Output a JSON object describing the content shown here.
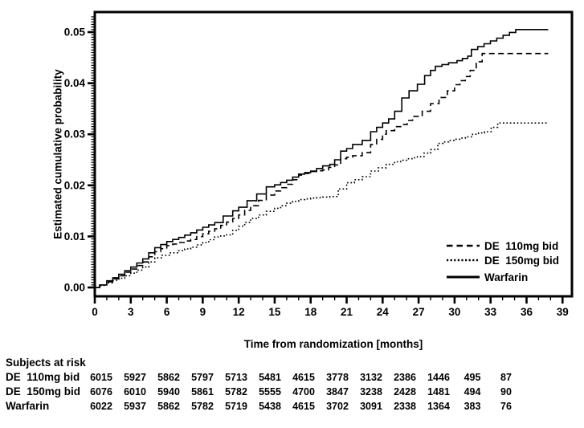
{
  "chart_data": {
    "type": "line",
    "subtype": "kaplan-meier-step",
    "title": "",
    "xlabel": "Time from randomization [months]",
    "ylabel": "Estimated cumulative probability",
    "xlim": [
      0,
      39.8
    ],
    "ylim": [
      0,
      0.0538
    ],
    "x_ticks": [
      0,
      3,
      6,
      9,
      12,
      15,
      18,
      21,
      24,
      27,
      30,
      33,
      36,
      39
    ],
    "x_minor_step": 1,
    "y_tick_values": [
      0,
      0.01,
      0.02,
      0.03,
      0.04,
      0.05
    ],
    "y_tick_labels": [
      "0.00",
      "0.01",
      "0.02",
      "0.03",
      "0.04",
      "0.05"
    ],
    "y_minor_step": 0.0005,
    "grid": false,
    "legend_position": "inside-lower-right",
    "line_color": "#000000",
    "series": [
      {
        "name": "DE  110mg bid",
        "style": "dashed",
        "points": [
          [
            0,
            0
          ],
          [
            0.5,
            0.0005
          ],
          [
            1,
            0.0011
          ],
          [
            1.5,
            0.0017
          ],
          [
            2,
            0.0023
          ],
          [
            2.5,
            0.003
          ],
          [
            3,
            0.0036
          ],
          [
            3.5,
            0.0043
          ],
          [
            4,
            0.005
          ],
          [
            4.5,
            0.006
          ],
          [
            5,
            0.007
          ],
          [
            5.5,
            0.0076
          ],
          [
            6,
            0.0082
          ],
          [
            7,
            0.0088
          ],
          [
            8,
            0.0094
          ],
          [
            9,
            0.0105
          ],
          [
            10,
            0.0115
          ],
          [
            11,
            0.0128
          ],
          [
            12,
            0.0142
          ],
          [
            13,
            0.016
          ],
          [
            14.3,
            0.0181
          ],
          [
            15,
            0.0189
          ],
          [
            16,
            0.0202
          ],
          [
            17,
            0.022
          ],
          [
            18,
            0.0227
          ],
          [
            19,
            0.023
          ],
          [
            20,
            0.024
          ],
          [
            20.5,
            0.0252
          ],
          [
            21.5,
            0.0258
          ],
          [
            22.3,
            0.0264
          ],
          [
            23,
            0.028
          ],
          [
            24,
            0.03
          ],
          [
            24.3,
            0.0307
          ],
          [
            25,
            0.0315
          ],
          [
            25.6,
            0.0319
          ],
          [
            26.5,
            0.0335
          ],
          [
            27.3,
            0.0345
          ],
          [
            28,
            0.036
          ],
          [
            28.7,
            0.0372
          ],
          [
            29.4,
            0.0385
          ],
          [
            30,
            0.0397
          ],
          [
            30.9,
            0.0413
          ],
          [
            31.3,
            0.0425
          ],
          [
            31.8,
            0.0442
          ],
          [
            32.3,
            0.0458
          ],
          [
            37.8,
            0.0458
          ]
        ]
      },
      {
        "name": "DE  150mg bid",
        "style": "dotted",
        "points": [
          [
            0,
            0
          ],
          [
            0.5,
            0.0004
          ],
          [
            1,
            0.0009
          ],
          [
            1.5,
            0.0014
          ],
          [
            2,
            0.0018
          ],
          [
            2.5,
            0.0023
          ],
          [
            3,
            0.0028
          ],
          [
            3.5,
            0.0034
          ],
          [
            4,
            0.004
          ],
          [
            4.5,
            0.005
          ],
          [
            5,
            0.0058
          ],
          [
            5.6,
            0.0063
          ],
          [
            6.3,
            0.0068
          ],
          [
            7,
            0.0072
          ],
          [
            8,
            0.0079
          ],
          [
            9,
            0.0088
          ],
          [
            10,
            0.0099
          ],
          [
            11,
            0.0103
          ],
          [
            11.5,
            0.0112
          ],
          [
            12,
            0.012
          ],
          [
            13,
            0.0135
          ],
          [
            14.3,
            0.0149
          ],
          [
            15,
            0.0155
          ],
          [
            16,
            0.0165
          ],
          [
            17,
            0.0172
          ],
          [
            18,
            0.0175
          ],
          [
            19,
            0.0177
          ],
          [
            19.6,
            0.0178
          ],
          [
            20.3,
            0.0193
          ],
          [
            21,
            0.0205
          ],
          [
            22.3,
            0.0217
          ],
          [
            23,
            0.0228
          ],
          [
            24.3,
            0.0241
          ],
          [
            25,
            0.0246
          ],
          [
            26,
            0.0252
          ],
          [
            26.9,
            0.0256
          ],
          [
            28,
            0.027
          ],
          [
            28.6,
            0.0282
          ],
          [
            29.5,
            0.0288
          ],
          [
            30.9,
            0.0295
          ],
          [
            31.5,
            0.03
          ],
          [
            32.5,
            0.0305
          ],
          [
            33.6,
            0.0322
          ],
          [
            37.8,
            0.0322
          ]
        ]
      },
      {
        "name": "Warfarin",
        "style": "solid",
        "points": [
          [
            0,
            0
          ],
          [
            0.4,
            0.0005
          ],
          [
            1,
            0.0013
          ],
          [
            1.5,
            0.0019
          ],
          [
            2,
            0.0026
          ],
          [
            2.5,
            0.0033
          ],
          [
            3,
            0.004
          ],
          [
            3.5,
            0.0048
          ],
          [
            4,
            0.0056
          ],
          [
            4.5,
            0.0068
          ],
          [
            5,
            0.0078
          ],
          [
            5.5,
            0.0084
          ],
          [
            6,
            0.009
          ],
          [
            7,
            0.0098
          ],
          [
            8,
            0.0107
          ],
          [
            9,
            0.0118
          ],
          [
            10,
            0.0127
          ],
          [
            10.7,
            0.014
          ],
          [
            11.5,
            0.015
          ],
          [
            12,
            0.0157
          ],
          [
            12.7,
            0.017
          ],
          [
            13.5,
            0.0183
          ],
          [
            14.3,
            0.0197
          ],
          [
            15,
            0.0201
          ],
          [
            16,
            0.021
          ],
          [
            17,
            0.0222
          ],
          [
            18,
            0.0228
          ],
          [
            19,
            0.0238
          ],
          [
            19.6,
            0.0241
          ],
          [
            20,
            0.025
          ],
          [
            20.5,
            0.0267
          ],
          [
            21,
            0.0272
          ],
          [
            21.5,
            0.028
          ],
          [
            22.3,
            0.0288
          ],
          [
            23,
            0.0305
          ],
          [
            24,
            0.0322
          ],
          [
            24.5,
            0.033
          ],
          [
            25,
            0.0345
          ],
          [
            25.6,
            0.0371
          ],
          [
            26.2,
            0.0385
          ],
          [
            26.9,
            0.0398
          ],
          [
            27.5,
            0.0415
          ],
          [
            28,
            0.0425
          ],
          [
            28.4,
            0.0433
          ],
          [
            29.5,
            0.044
          ],
          [
            30.2,
            0.0444
          ],
          [
            31.1,
            0.0453
          ],
          [
            31.4,
            0.0466
          ],
          [
            35.1,
            0.0505
          ],
          [
            37.8,
            0.0505
          ]
        ]
      }
    ]
  },
  "risk_table": {
    "title": "Subjects at risk",
    "months": [
      0,
      3,
      6,
      9,
      12,
      15,
      18,
      21,
      24,
      27,
      30,
      33,
      36
    ],
    "rows": [
      {
        "label": "DE  110mg bid",
        "counts": [
          6015,
          5927,
          5862,
          5797,
          5713,
          5481,
          4615,
          3778,
          3132,
          2386,
          1446,
          495,
          87
        ]
      },
      {
        "label": "DE  150mg bid",
        "counts": [
          6076,
          6010,
          5940,
          5861,
          5782,
          5555,
          4700,
          3847,
          3238,
          2428,
          1481,
          494,
          90
        ]
      },
      {
        "label": "Warfarin",
        "counts": [
          6022,
          5937,
          5862,
          5782,
          5719,
          5438,
          4615,
          3702,
          3091,
          2338,
          1364,
          383,
          76
        ]
      }
    ]
  },
  "colors": {
    "background": "#ffffff",
    "text": "#000000",
    "line": "#000000"
  }
}
